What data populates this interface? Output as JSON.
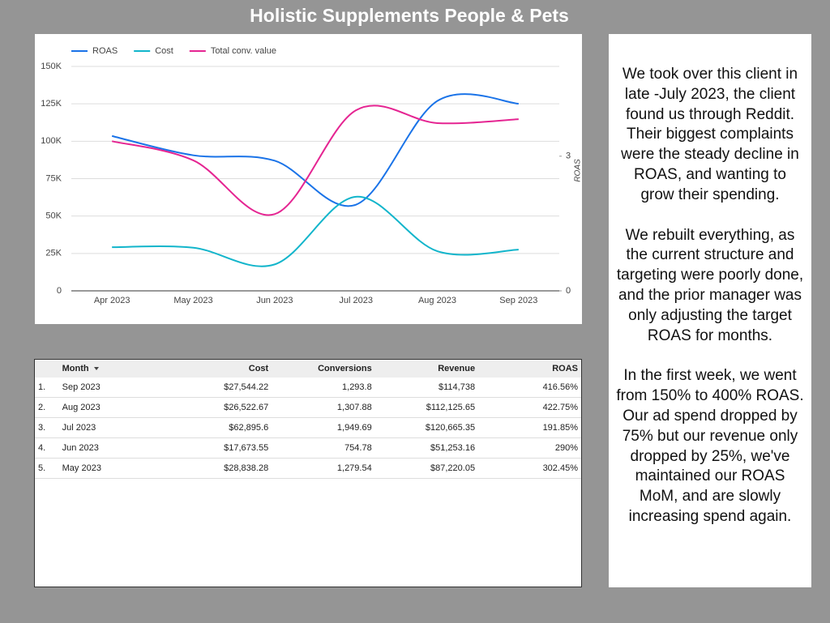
{
  "page_title": "Holistic Supplements People & Pets",
  "chart_data": {
    "type": "line",
    "categories": [
      "Apr 2023",
      "May 2023",
      "Jun 2023",
      "Jul 2023",
      "Aug 2023",
      "Sep 2023"
    ],
    "series": [
      {
        "name": "ROAS",
        "color": "#1a73e8",
        "axis": "y2",
        "values": [
          3.45,
          3.02,
          2.9,
          1.92,
          4.23,
          4.17
        ]
      },
      {
        "name": "Cost",
        "color": "#12b5cb",
        "values": [
          29200,
          28838.28,
          17673.55,
          62895.6,
          26522.67,
          27544.22
        ]
      },
      {
        "name": "Total conv. value",
        "color": "#e52592",
        "values": [
          100000,
          87220.05,
          51253.16,
          120665.35,
          112125.65,
          114738
        ]
      }
    ],
    "ylim": [
      0,
      150000
    ],
    "yticks": [
      0,
      {
        "value": 25000,
        "label": "25K"
      },
      {
        "value": 50000,
        "label": "50K"
      },
      {
        "value": 75000,
        "label": "75K"
      },
      {
        "value": 100000,
        "label": "100K"
      },
      {
        "value": 125000,
        "label": "125K"
      },
      {
        "value": 150000,
        "label": "150K"
      }
    ],
    "y2lim": [
      0,
      5
    ],
    "y2ticks": [
      0,
      3
    ],
    "y2label": "ROAS",
    "grid": true,
    "legend": "top-left"
  },
  "table": {
    "columns": [
      "Month",
      "Cost",
      "Conversions",
      "Revenue",
      "ROAS"
    ],
    "rows": [
      [
        "1.",
        "Sep 2023",
        "$27,544.22",
        "1,293.8",
        "$114,738",
        "416.56%"
      ],
      [
        "2.",
        "Aug 2023",
        "$26,522.67",
        "1,307.88",
        "$112,125.65",
        "422.75%"
      ],
      [
        "3.",
        "Jul 2023",
        "$62,895.6",
        "1,949.69",
        "$120,665.35",
        "191.85%"
      ],
      [
        "4.",
        "Jun 2023",
        "$17,673.55",
        "754.78",
        "$51,253.16",
        "290%"
      ],
      [
        "5.",
        "May 2023",
        "$28,838.28",
        "1,279.54",
        "$87,220.05",
        "302.45%"
      ]
    ]
  },
  "notes": [
    "We took over this client in late -July 2023, the client found us through Reddit. Their biggest complaints were the steady decline in ROAS, and wanting to grow their spending.",
    "We rebuilt everything, as the current structure and targeting were poorly done, and the prior manager was only adjusting the target ROAS for months.",
    "In the first week, we went from 150% to 400% ROAS. Our ad spend dropped by 75% but our revenue only dropped by 25%, we've maintained our ROAS MoM, and are slowly increasing spend again."
  ]
}
